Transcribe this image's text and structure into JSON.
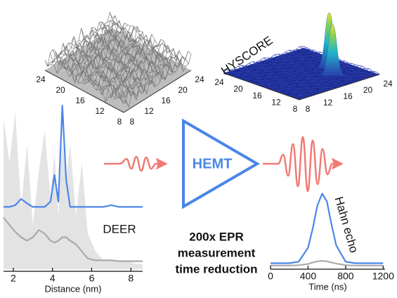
{
  "chart_data": [
    {
      "type": "line",
      "xlabel": "Distance (nm)",
      "annotation": "DEER",
      "x": [
        1.5,
        1.8,
        2.1,
        2.4,
        2.7,
        3.0,
        3.3,
        3.6,
        3.9,
        4.1,
        4.3,
        4.5,
        4.7,
        4.9,
        5.2,
        5.5,
        5.8,
        6.2,
        6.6,
        7.0,
        7.4,
        7.8,
        8.2,
        8.6
      ],
      "series": [
        {
          "kind": "area",
          "color": "#e3e3e3",
          "values": [
            8.5,
            6,
            8.8,
            3.5,
            7,
            2.5,
            5.5,
            7.8,
            4,
            6.5,
            3,
            7.2,
            5,
            7,
            3,
            6,
            2,
            1,
            0.5,
            0.5,
            0.5,
            0.5,
            0.3,
            0.3
          ]
        },
        {
          "kind": "line",
          "color": "#aaaaaa",
          "values": [
            2.9,
            2.5,
            2.1,
            1.8,
            1.6,
            1.8,
            2.2,
            2.0,
            1.6,
            1.5,
            1.6,
            1.8,
            1.8,
            1.6,
            1.4,
            1.0,
            0.6,
            0.5,
            0.5,
            0.5,
            0.45,
            0.45,
            0.45,
            0.45
          ]
        },
        {
          "kind": "line",
          "color": "#4a86e8",
          "values": [
            3.5,
            3.5,
            3.6,
            3.95,
            3.7,
            3.5,
            3.5,
            3.5,
            3.8,
            5.3,
            3.8,
            9.2,
            5.0,
            3.5,
            3.5,
            3.5,
            3.5,
            3.5,
            3.5,
            3.6,
            3.5,
            3.5,
            3.5,
            3.5
          ]
        }
      ],
      "xlim": [
        1.5,
        8.6
      ],
      "ylim": [
        0,
        10
      ],
      "xticks": [
        2,
        4,
        6,
        8
      ]
    },
    {
      "type": "line",
      "xlabel": "Time (ns)",
      "annotation": "Hahn echo",
      "x": [
        0,
        100,
        200,
        300,
        400,
        450,
        500,
        550,
        600,
        650,
        700,
        800,
        900,
        1000,
        1100,
        1200
      ],
      "series": [
        {
          "kind": "line",
          "color": "#aaaaaa",
          "values": [
            0.2,
            0.2,
            0.2,
            0.25,
            0.4,
            0.6,
            0.75,
            0.8,
            0.75,
            0.6,
            0.45,
            0.25,
            0.2,
            0.2,
            0.2,
            0.2
          ]
        },
        {
          "kind": "line",
          "color": "#4a86e8",
          "values": [
            0.5,
            0.5,
            0.5,
            0.7,
            2.5,
            5,
            8,
            9.5,
            8.5,
            5.5,
            2.8,
            0.7,
            0.5,
            0.5,
            0.5,
            0.5
          ]
        }
      ],
      "xlim": [
        0,
        1220
      ],
      "ylim": [
        0,
        10
      ],
      "xticks": [
        0,
        400,
        800,
        1200
      ]
    }
  ],
  "surfaces": [
    {
      "left_axis": [
        24,
        20,
        16,
        12,
        8
      ],
      "right_axis": [
        24,
        20,
        16,
        12,
        8
      ]
    },
    {
      "title": "HYSCORE",
      "left_axis": [
        24,
        20,
        16,
        12,
        8
      ],
      "right_axis": [
        24,
        20,
        16,
        12,
        8
      ]
    }
  ],
  "amplifier": "HEMT",
  "caption": [
    "200x EPR",
    "measurement",
    "time reduction"
  ]
}
